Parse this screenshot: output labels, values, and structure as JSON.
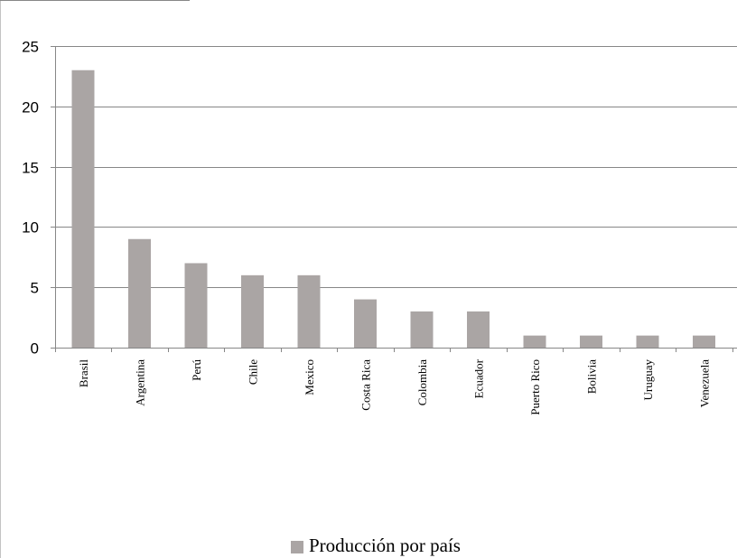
{
  "chart_data": {
    "type": "bar",
    "title": "",
    "xlabel": "",
    "ylabel": "",
    "categories": [
      "Brasil",
      "Argentina",
      "Perú",
      "Chile",
      "Mexico",
      "Costa Rica",
      "Colombia",
      "Ecuador",
      "Puerto Rico",
      "Bolivia",
      "Uruguay",
      "Venezuela"
    ],
    "series": [
      {
        "name": "Producción por país",
        "values": [
          23,
          9,
          7,
          6,
          6,
          4,
          3,
          3,
          1,
          1,
          1,
          1
        ],
        "color": "#aaa5a4"
      }
    ],
    "ylim": [
      0,
      25
    ],
    "yticks": [
      0,
      5,
      10,
      15,
      20,
      25
    ],
    "grid": true,
    "legend_position": "bottom"
  },
  "colors": {
    "bar": "#aaa5a4",
    "grid": "#878787",
    "axis": "#878787"
  }
}
